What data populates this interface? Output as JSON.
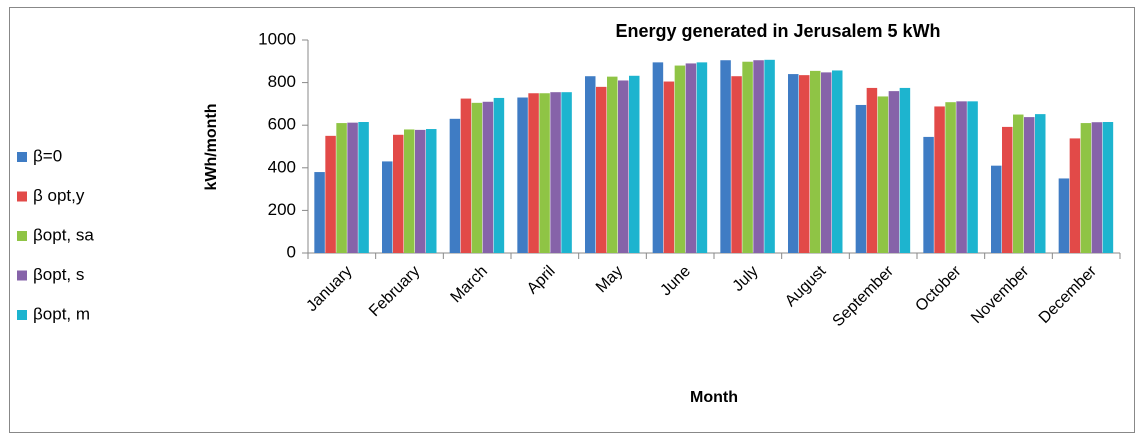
{
  "chart_data": {
    "type": "bar",
    "title": "Energy generated in Jerusalem 5 kWh",
    "x_label": "Month",
    "y_label": "kWh/month",
    "categories": [
      "January",
      "February",
      "March",
      "April",
      "May",
      "June",
      "July",
      "August",
      "September",
      "October",
      "November",
      "December"
    ],
    "series": [
      {
        "name": "β=0",
        "color": "#3f7cc4",
        "values": [
          380,
          430,
          630,
          730,
          830,
          895,
          905,
          840,
          695,
          545,
          410,
          350
        ]
      },
      {
        "name": "β opt,y",
        "color": "#e24a48",
        "values": [
          550,
          555,
          725,
          750,
          780,
          805,
          830,
          835,
          775,
          688,
          592,
          538
        ]
      },
      {
        "name": "βopt, sa",
        "color": "#8fc445",
        "values": [
          610,
          580,
          705,
          750,
          828,
          880,
          898,
          855,
          735,
          708,
          650,
          610
        ]
      },
      {
        "name": "βopt, s",
        "color": "#8663a9",
        "values": [
          612,
          578,
          710,
          755,
          810,
          890,
          905,
          848,
          760,
          712,
          638,
          614
        ]
      },
      {
        "name": "βopt, m",
        "color": "#1db4cf",
        "values": [
          615,
          582,
          728,
          755,
          832,
          895,
          907,
          857,
          775,
          712,
          652,
          615
        ]
      }
    ],
    "ylim": [
      0,
      1000
    ],
    "yticks": [
      0,
      200,
      400,
      600,
      800,
      1000
    ],
    "legend": "left"
  }
}
